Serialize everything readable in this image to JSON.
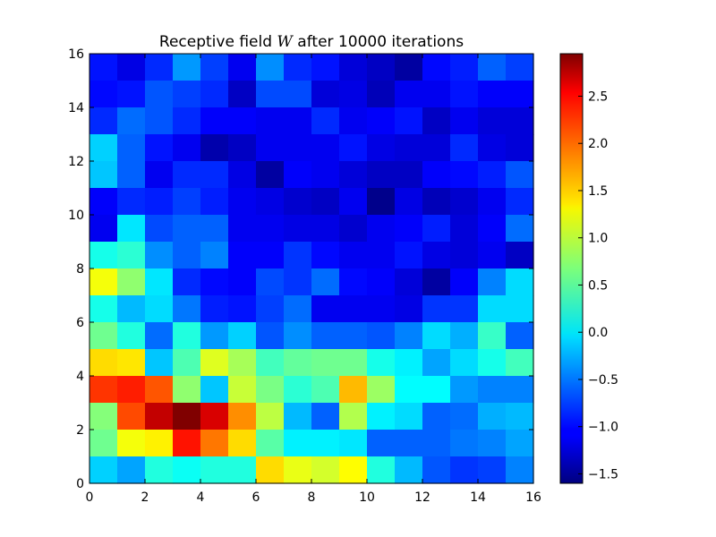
{
  "chart_data": {
    "type": "heatmap",
    "title": "Receptive field W after 10000 iterations",
    "title_parts": {
      "before": "Receptive field ",
      "variable": "W",
      "after": " after 10000 iterations"
    },
    "xlabel": "",
    "ylabel": "",
    "xlim": [
      0,
      16
    ],
    "ylim": [
      0,
      16
    ],
    "x_ticks": [
      0,
      2,
      4,
      6,
      8,
      10,
      12,
      14,
      16
    ],
    "y_ticks": [
      0,
      2,
      4,
      6,
      8,
      10,
      12,
      14,
      16
    ],
    "x_tick_labels": [
      "0",
      "2",
      "4",
      "6",
      "8",
      "10",
      "12",
      "14",
      "16"
    ],
    "y_tick_labels": [
      "0",
      "2",
      "4",
      "6",
      "8",
      "10",
      "12",
      "14",
      "16"
    ],
    "colormap": "jet",
    "vmin": -1.6,
    "vmax": 2.95,
    "colorbar_ticks": [
      -1.5,
      -1.0,
      -0.5,
      0.0,
      0.5,
      1.0,
      1.5,
      2.0,
      2.5
    ],
    "colorbar_tick_labels": [
      "−1.5",
      "−1.0",
      "−0.5",
      "0.0",
      "0.5",
      "1.0",
      "1.5",
      "2.0",
      "2.5"
    ],
    "row_order": "top-to-bottom (row 0 spans y 15-16, last row spans y 0-1)",
    "values": [
      [
        -0.95,
        -1.15,
        -0.85,
        -0.35,
        -0.75,
        -1.1,
        -0.4,
        -0.85,
        -0.95,
        -1.2,
        -1.3,
        -1.45,
        -1.0,
        -0.9,
        -0.6,
        -0.75
      ],
      [
        -1.0,
        -0.95,
        -0.65,
        -0.75,
        -0.85,
        -1.3,
        -0.7,
        -0.7,
        -1.2,
        -1.15,
        -1.35,
        -1.1,
        -1.1,
        -0.95,
        -1.05,
        -1.05
      ],
      [
        -0.85,
        -0.55,
        -0.65,
        -0.85,
        -1.05,
        -1.05,
        -1.1,
        -1.1,
        -0.85,
        -1.1,
        -1.05,
        -0.95,
        -1.3,
        -1.1,
        -1.2,
        -1.2
      ],
      [
        -0.1,
        -0.6,
        -0.95,
        -1.1,
        -1.4,
        -1.3,
        -1.1,
        -1.1,
        -1.1,
        -0.95,
        -1.15,
        -1.2,
        -1.2,
        -0.85,
        -1.15,
        -1.2
      ],
      [
        -0.15,
        -0.6,
        -1.1,
        -0.85,
        -0.85,
        -1.15,
        -1.45,
        -1.05,
        -1.1,
        -1.2,
        -1.3,
        -1.3,
        -1.05,
        -1.0,
        -0.9,
        -0.65
      ],
      [
        -1.05,
        -0.85,
        -0.9,
        -0.75,
        -0.9,
        -1.1,
        -1.15,
        -1.25,
        -1.3,
        -1.1,
        -1.55,
        -1.15,
        -1.35,
        -1.25,
        -1.1,
        -0.85
      ],
      [
        -1.1,
        0.0,
        -0.7,
        -0.6,
        -0.6,
        -1.1,
        -1.1,
        -1.15,
        -1.15,
        -1.25,
        -1.1,
        -1.05,
        -0.9,
        -1.2,
        -1.05,
        -0.55
      ],
      [
        0.2,
        0.3,
        -0.4,
        -0.6,
        -0.45,
        -1.05,
        -1.05,
        -0.8,
        -1.0,
        -1.1,
        -1.1,
        -0.95,
        -1.15,
        -1.2,
        -1.1,
        -1.3
      ],
      [
        1.2,
        0.75,
        0.0,
        -0.85,
        -1.0,
        -1.05,
        -0.7,
        -0.8,
        -0.55,
        -1.0,
        -1.05,
        -1.2,
        -1.45,
        -1.05,
        -0.45,
        -0.05
      ],
      [
        0.2,
        -0.2,
        -0.05,
        -0.5,
        -0.9,
        -0.95,
        -0.75,
        -0.55,
        -1.1,
        -1.1,
        -1.1,
        -1.15,
        -0.8,
        -0.8,
        -0.05,
        -0.05
      ],
      [
        0.6,
        0.25,
        -0.55,
        0.25,
        -0.35,
        -0.1,
        -0.65,
        -0.4,
        -0.6,
        -0.6,
        -0.65,
        -0.45,
        -0.05,
        -0.25,
        0.35,
        -0.6
      ],
      [
        1.4,
        1.35,
        -0.15,
        0.45,
        1.1,
        0.85,
        0.4,
        0.55,
        0.6,
        0.6,
        0.2,
        0.05,
        -0.3,
        -0.05,
        0.2,
        0.4
      ],
      [
        2.15,
        2.25,
        2.0,
        0.75,
        -0.15,
        1.0,
        0.65,
        0.3,
        0.45,
        1.55,
        0.8,
        0.1,
        0.1,
        -0.35,
        -0.45,
        -0.45
      ],
      [
        0.7,
        2.05,
        2.65,
        2.95,
        2.55,
        1.75,
        0.95,
        -0.2,
        -0.6,
        0.9,
        0.05,
        -0.05,
        -0.6,
        -0.55,
        -0.25,
        -0.2
      ],
      [
        0.6,
        1.2,
        1.3,
        2.3,
        1.85,
        1.4,
        0.5,
        0.05,
        0.05,
        0.0,
        -0.6,
        -0.6,
        -0.6,
        -0.5,
        -0.45,
        -0.3
      ],
      [
        -0.1,
        -0.3,
        0.25,
        0.15,
        0.25,
        0.25,
        1.4,
        1.15,
        1.05,
        1.25,
        0.25,
        -0.2,
        -0.65,
        -0.8,
        -0.75,
        -0.45
      ]
    ]
  }
}
